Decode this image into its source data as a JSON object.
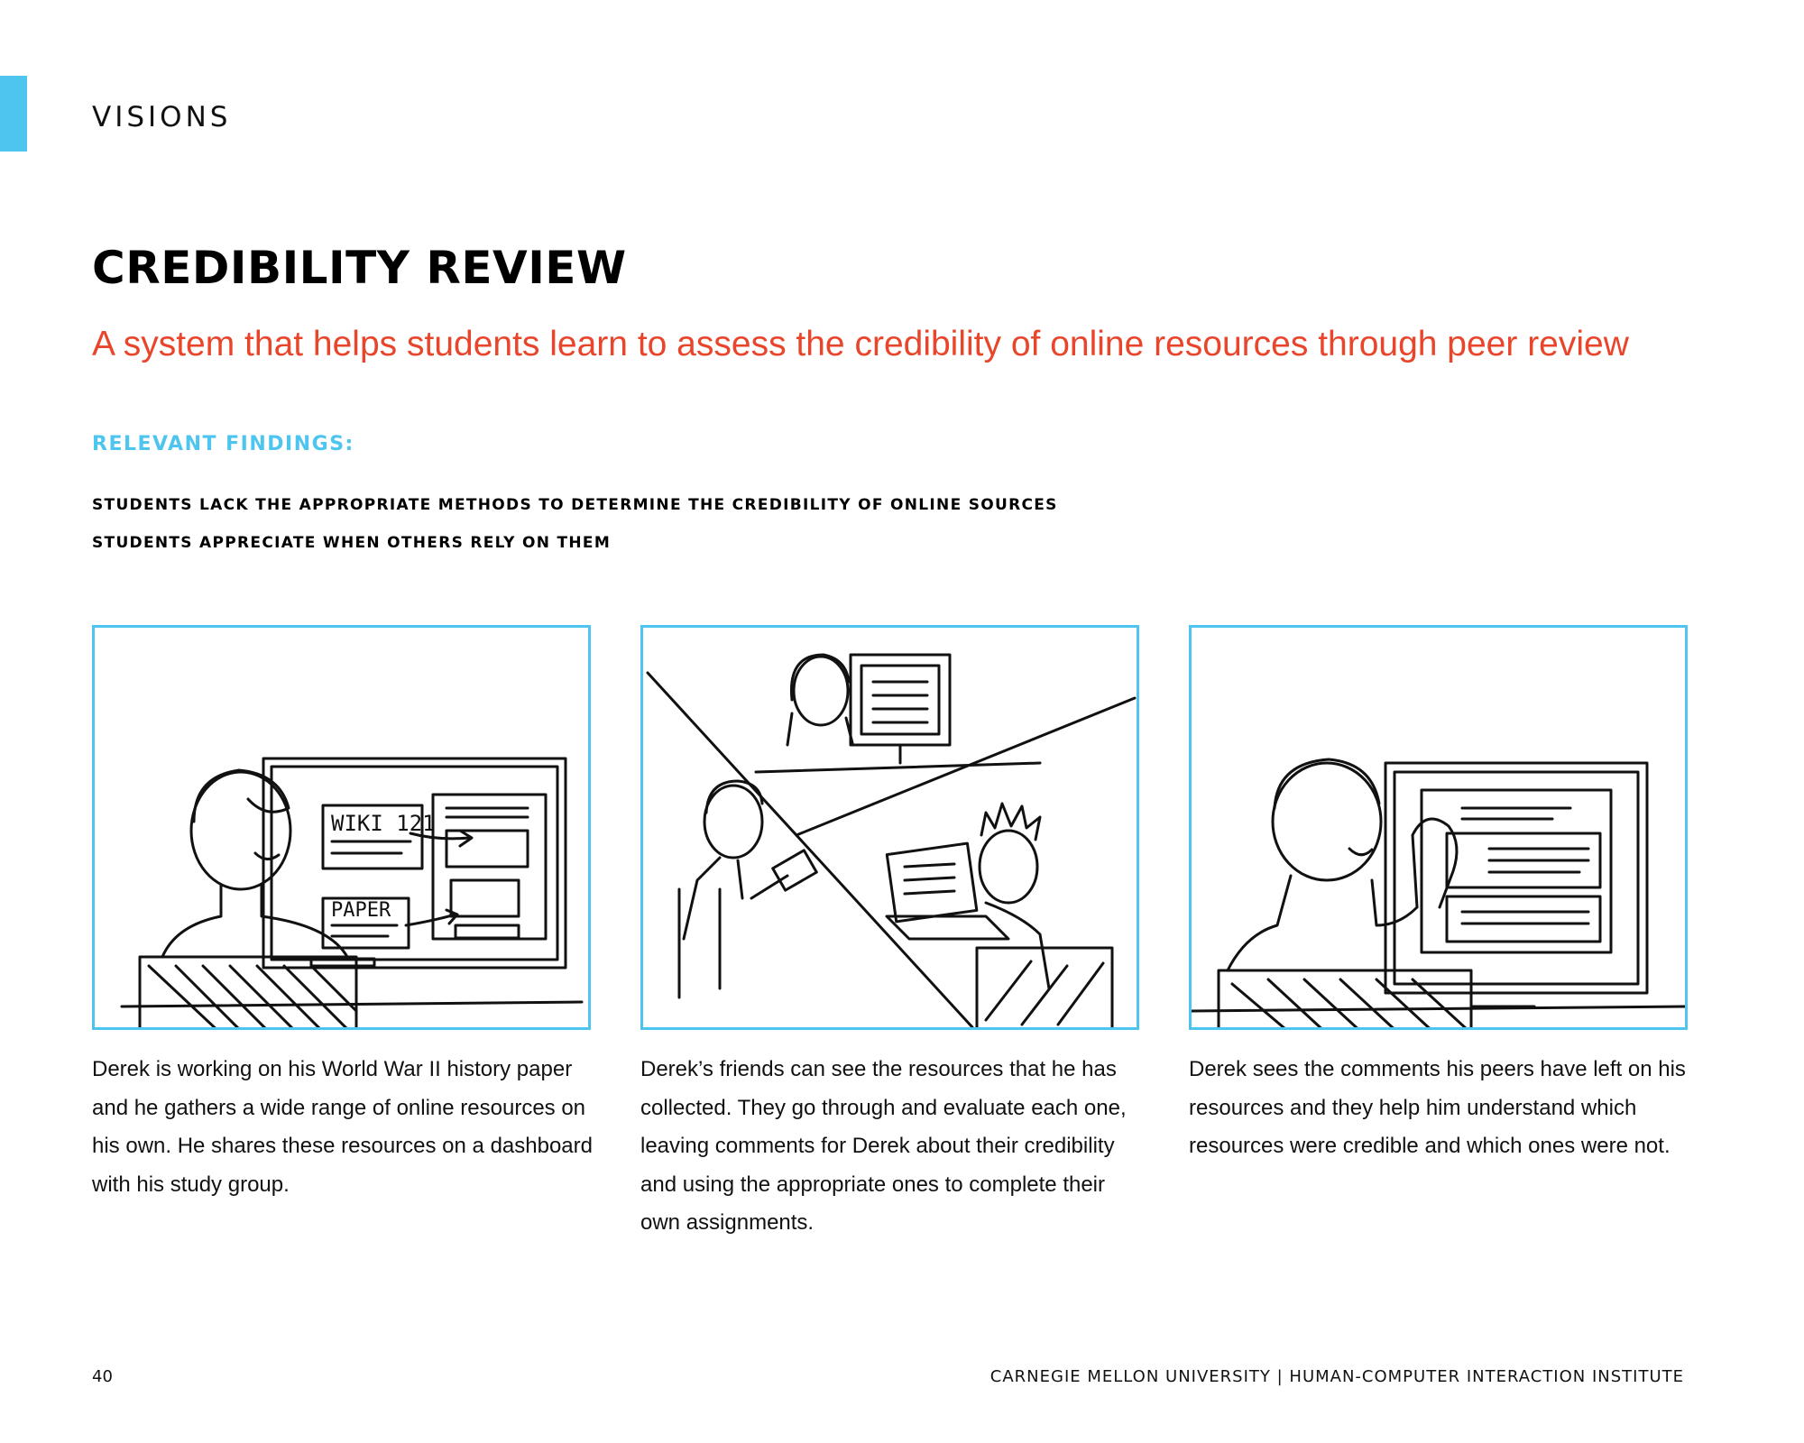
{
  "header": {
    "section_label": "VISIONS",
    "title": "CREDIBILITY REVIEW",
    "subtitle": "A system that helps students learn to assess the credibility of online resources through peer review",
    "accent_color": "#4dc5ee",
    "subtitle_color": "#e8452b"
  },
  "findings": {
    "heading": "RELEVANT FINDINGS:",
    "items": [
      "STUDENTS LACK THE APPROPRIATE METHODS TO DETERMINE THE CREDIBILITY OF ONLINE SOURCES",
      "STUDENTS APPRECIATE WHEN OTHERS RELY ON THEM"
    ]
  },
  "storyboard": {
    "panels": [
      {
        "sketch_labels": [
          "WIKI 121",
          "PAPER"
        ],
        "caption": "Derek is working on his World War II history paper and he gathers a wide range of online resources on his own. He shares these resources on a dashboard with his study group."
      },
      {
        "caption": "Derek’s friends can see the resources that he has collected. They go through and evaluate each one, leaving comments for Derek about their credibility and using the appropriate ones to complete their own assignments."
      },
      {
        "caption": "Derek sees the comments his peers have left on his resources and they help him understand which resources were credible and which ones were not."
      }
    ]
  },
  "footer": {
    "page_number": "40",
    "institution": "CARNEGIE MELLON UNIVERSITY | HUMAN-COMPUTER INTERACTION INSTITUTE"
  }
}
